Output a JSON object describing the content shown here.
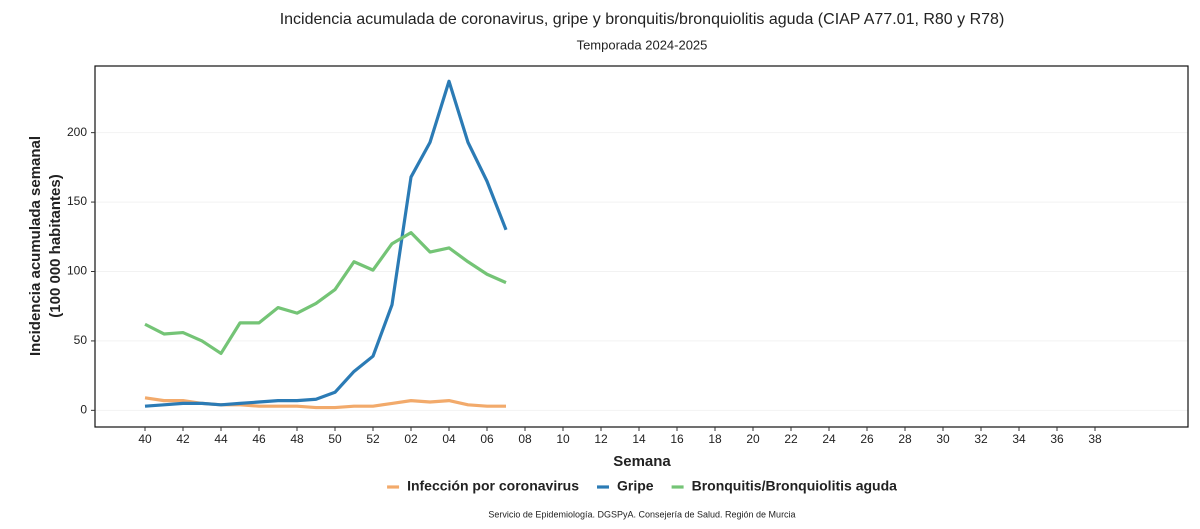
{
  "chart_data": {
    "type": "line",
    "title": "Incidencia acumulada de coronavirus, gripe y bronquitis/bronquiolitis aguda (CIAP A77.01, R80 y R78)",
    "subtitle": "Temporada 2024-2025",
    "xlabel": "Semana",
    "ylabel": [
      "Incidencia acumulada semanal",
      "(100 000 habitantes)"
    ],
    "source": "Servicio de Epidemiología. DGSPyA. Consejería de Salud. Región de Murcia",
    "categories": [
      "40",
      null,
      "42",
      null,
      "44",
      null,
      "46",
      null,
      "48",
      null,
      "50",
      null,
      "52",
      null,
      "02",
      null,
      "04",
      null,
      "06",
      null,
      "08",
      null,
      "10",
      null,
      "12",
      null,
      "14",
      null,
      "16",
      null,
      "18",
      null,
      "20",
      null,
      "22",
      null,
      "24",
      null,
      "26",
      null,
      "28",
      null,
      "30",
      null,
      "32",
      null,
      "34",
      null,
      "36",
      null,
      "38",
      null
    ],
    "series": [
      {
        "name": "Infección por coronavirus",
        "color": "#f2aa6b",
        "values": [
          9,
          7,
          7,
          5,
          4,
          4,
          3,
          3,
          3,
          2,
          2,
          3,
          3,
          5,
          7,
          6,
          7,
          4,
          3,
          3,
          null,
          null,
          null,
          null,
          null,
          null,
          null,
          null,
          null,
          null,
          null,
          null,
          null,
          null,
          null,
          null,
          null,
          null,
          null,
          null,
          null,
          null,
          null,
          null,
          null,
          null,
          null,
          null,
          null,
          null,
          null,
          null
        ]
      },
      {
        "name": "Gripe",
        "color": "#2b7bb5",
        "values": [
          3,
          4,
          5,
          5,
          4,
          5,
          6,
          7,
          7,
          8,
          13,
          28,
          39,
          76,
          168,
          193,
          237,
          193,
          165,
          130,
          null,
          null,
          null,
          null,
          null,
          null,
          null,
          null,
          null,
          null,
          null,
          null,
          null,
          null,
          null,
          null,
          null,
          null,
          null,
          null,
          null,
          null,
          null,
          null,
          null,
          null,
          null,
          null,
          null,
          null,
          null,
          null
        ]
      },
      {
        "name": "Bronquitis/Bronquiolitis aguda",
        "color": "#74c476",
        "values": [
          62,
          55,
          56,
          50,
          41,
          63,
          63,
          74,
          70,
          77,
          87,
          107,
          101,
          120,
          128,
          114,
          117,
          107,
          98,
          92,
          null,
          null,
          null,
          null,
          null,
          null,
          null,
          null,
          null,
          null,
          null,
          null,
          null,
          null,
          null,
          null,
          null,
          null,
          null,
          null,
          null,
          null,
          null,
          null,
          null,
          null,
          null,
          null,
          null,
          null,
          null,
          null
        ]
      }
    ],
    "ylim": [
      -12,
      248
    ],
    "yticks": [
      0,
      50,
      100,
      150,
      200
    ],
    "grid": true,
    "legend": "bottom"
  }
}
